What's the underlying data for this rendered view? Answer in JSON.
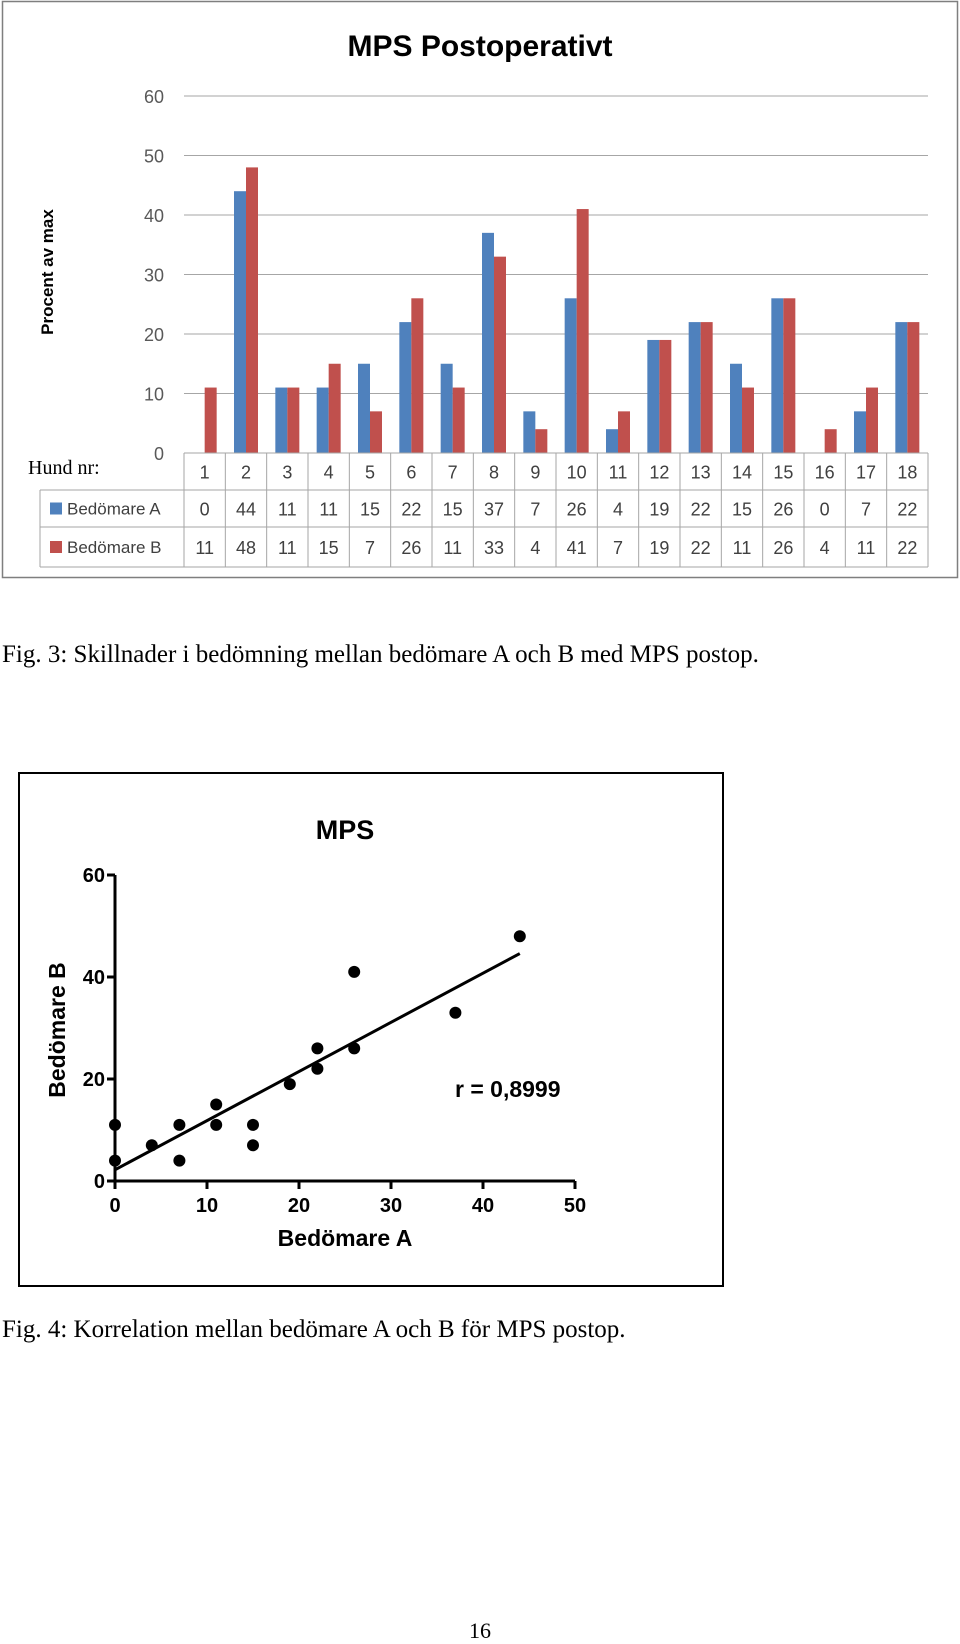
{
  "figure1": {
    "caption": "Fig. 3: Skillnader i bedömning mellan bedömare A och B med MPS postop.",
    "row_header": "Hund nr:"
  },
  "figure2": {
    "caption": "Fig. 4: Korrelation mellan bedömare A och B för MPS postop."
  },
  "page_number": "16",
  "chart_data": [
    {
      "type": "bar",
      "title": "MPS Postoperativt",
      "xlabel": "",
      "ylabel": "Procent av max",
      "ylim": [
        0,
        60
      ],
      "yticks": [
        0,
        10,
        20,
        30,
        40,
        50,
        60
      ],
      "grid": true,
      "legend": "data-table",
      "categories": [
        "1",
        "2",
        "3",
        "4",
        "5",
        "6",
        "7",
        "8",
        "9",
        "10",
        "11",
        "12",
        "13",
        "14",
        "15",
        "16",
        "17",
        "18"
      ],
      "series": [
        {
          "name": "Bedömare A",
          "color": "#4f81bd",
          "values": [
            0,
            44,
            11,
            11,
            15,
            22,
            15,
            37,
            7,
            26,
            4,
            19,
            22,
            15,
            26,
            0,
            7,
            22
          ]
        },
        {
          "name": "Bedömare B",
          "color": "#c0504d",
          "values": [
            11,
            48,
            11,
            15,
            7,
            26,
            11,
            33,
            4,
            41,
            7,
            19,
            22,
            11,
            26,
            4,
            11,
            22
          ]
        }
      ]
    },
    {
      "type": "scatter",
      "title": "MPS",
      "xlabel": "Bedömare A",
      "ylabel": "Bedömare B",
      "xlim": [
        0,
        50
      ],
      "ylim": [
        0,
        60
      ],
      "xticks": [
        0,
        10,
        20,
        30,
        40,
        50
      ],
      "yticks": [
        0,
        20,
        40,
        60
      ],
      "annotation": "r = 0,8999",
      "points": [
        {
          "x": 0,
          "y": 11
        },
        {
          "x": 44,
          "y": 48
        },
        {
          "x": 11,
          "y": 11
        },
        {
          "x": 11,
          "y": 15
        },
        {
          "x": 15,
          "y": 7
        },
        {
          "x": 22,
          "y": 26
        },
        {
          "x": 15,
          "y": 11
        },
        {
          "x": 37,
          "y": 33
        },
        {
          "x": 7,
          "y": 4
        },
        {
          "x": 26,
          "y": 41
        },
        {
          "x": 4,
          "y": 7
        },
        {
          "x": 19,
          "y": 19
        },
        {
          "x": 22,
          "y": 22
        },
        {
          "x": 26,
          "y": 26
        },
        {
          "x": 0,
          "y": 4
        },
        {
          "x": 7,
          "y": 11
        }
      ],
      "regression_line": {
        "x": [
          0,
          44
        ],
        "y": [
          2.2,
          44.6
        ]
      }
    }
  ]
}
